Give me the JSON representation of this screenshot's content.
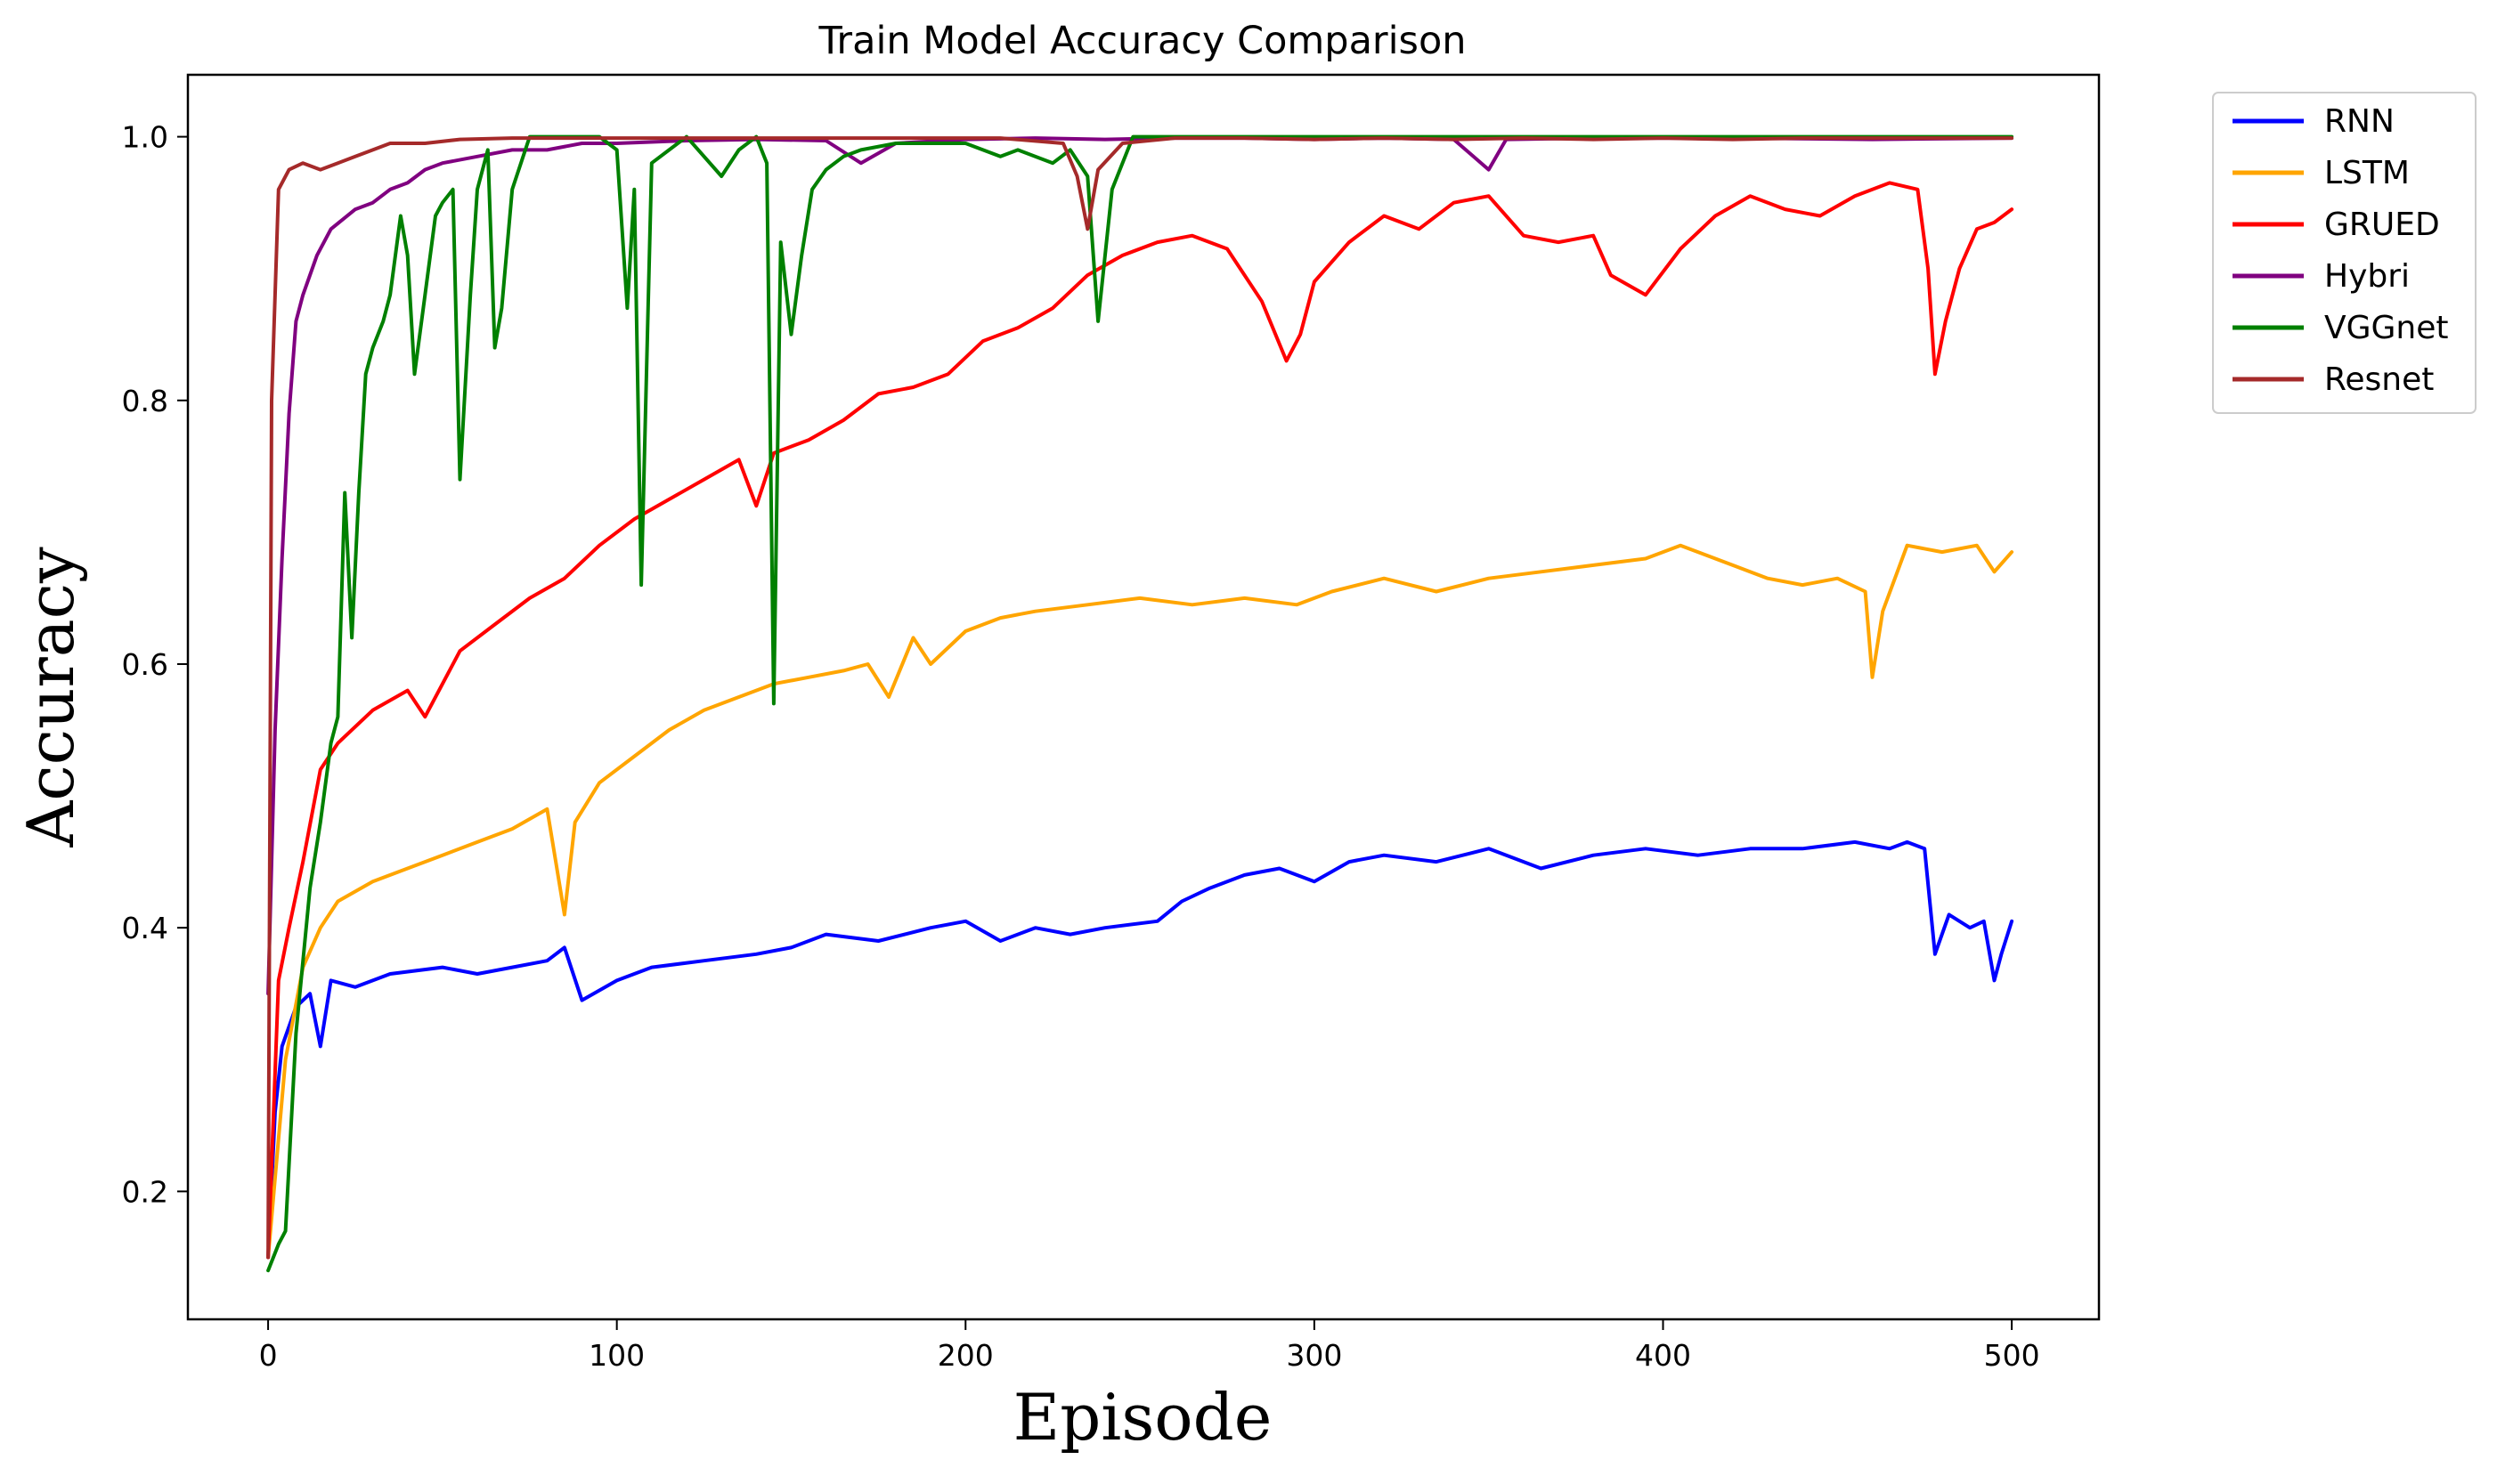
{
  "chart_data": {
    "type": "line",
    "title": "Train Model Accuracy Comparison",
    "xlabel": "Episode",
    "ylabel": "Accuracy",
    "xlim": [
      -23,
      525
    ],
    "ylim": [
      0.103,
      1.047
    ],
    "xticks": [
      0,
      100,
      200,
      300,
      400,
      500
    ],
    "yticks": [
      0.2,
      0.4,
      0.6,
      0.8,
      1.0
    ],
    "xtick_labels": [
      "0",
      "100",
      "200",
      "300",
      "400",
      "500"
    ],
    "ytick_labels": [
      "0.2",
      "0.4",
      "0.6",
      "0.8",
      "1.0"
    ],
    "grid": false,
    "legend_position": "outside-top-right",
    "series": [
      {
        "name": "RNN",
        "color": "#0000ff",
        "points": [
          [
            0,
            0.15
          ],
          [
            2,
            0.26
          ],
          [
            4,
            0.31
          ],
          [
            8,
            0.34
          ],
          [
            12,
            0.35
          ],
          [
            15,
            0.31
          ],
          [
            18,
            0.36
          ],
          [
            25,
            0.355
          ],
          [
            35,
            0.365
          ],
          [
            50,
            0.37
          ],
          [
            60,
            0.365
          ],
          [
            70,
            0.37
          ],
          [
            80,
            0.375
          ],
          [
            85,
            0.385
          ],
          [
            90,
            0.345
          ],
          [
            100,
            0.36
          ],
          [
            110,
            0.37
          ],
          [
            125,
            0.375
          ],
          [
            140,
            0.38
          ],
          [
            150,
            0.385
          ],
          [
            160,
            0.395
          ],
          [
            175,
            0.39
          ],
          [
            190,
            0.4
          ],
          [
            200,
            0.405
          ],
          [
            210,
            0.39
          ],
          [
            220,
            0.4
          ],
          [
            230,
            0.395
          ],
          [
            240,
            0.4
          ],
          [
            255,
            0.405
          ],
          [
            262,
            0.42
          ],
          [
            270,
            0.43
          ],
          [
            280,
            0.44
          ],
          [
            290,
            0.445
          ],
          [
            300,
            0.435
          ],
          [
            310,
            0.45
          ],
          [
            320,
            0.455
          ],
          [
            335,
            0.45
          ],
          [
            350,
            0.46
          ],
          [
            365,
            0.445
          ],
          [
            380,
            0.455
          ],
          [
            395,
            0.46
          ],
          [
            410,
            0.455
          ],
          [
            425,
            0.46
          ],
          [
            440,
            0.46
          ],
          [
            455,
            0.465
          ],
          [
            465,
            0.46
          ],
          [
            470,
            0.465
          ],
          [
            475,
            0.46
          ],
          [
            478,
            0.38
          ],
          [
            482,
            0.41
          ],
          [
            488,
            0.4
          ],
          [
            492,
            0.405
          ],
          [
            495,
            0.36
          ],
          [
            497,
            0.38
          ],
          [
            500,
            0.405
          ]
        ]
      },
      {
        "name": "LSTM",
        "color": "#ffa500",
        "points": [
          [
            0,
            0.15
          ],
          [
            5,
            0.3
          ],
          [
            10,
            0.37
          ],
          [
            15,
            0.4
          ],
          [
            20,
            0.42
          ],
          [
            30,
            0.435
          ],
          [
            40,
            0.445
          ],
          [
            50,
            0.455
          ],
          [
            60,
            0.465
          ],
          [
            70,
            0.475
          ],
          [
            80,
            0.49
          ],
          [
            85,
            0.41
          ],
          [
            88,
            0.48
          ],
          [
            95,
            0.51
          ],
          [
            105,
            0.53
          ],
          [
            115,
            0.55
          ],
          [
            125,
            0.565
          ],
          [
            135,
            0.575
          ],
          [
            145,
            0.585
          ],
          [
            155,
            0.59
          ],
          [
            165,
            0.595
          ],
          [
            172,
            0.6
          ],
          [
            178,
            0.575
          ],
          [
            185,
            0.62
          ],
          [
            190,
            0.6
          ],
          [
            200,
            0.625
          ],
          [
            210,
            0.635
          ],
          [
            220,
            0.64
          ],
          [
            235,
            0.645
          ],
          [
            250,
            0.65
          ],
          [
            265,
            0.645
          ],
          [
            280,
            0.65
          ],
          [
            295,
            0.645
          ],
          [
            305,
            0.655
          ],
          [
            320,
            0.665
          ],
          [
            335,
            0.655
          ],
          [
            350,
            0.665
          ],
          [
            365,
            0.67
          ],
          [
            380,
            0.675
          ],
          [
            395,
            0.68
          ],
          [
            405,
            0.69
          ],
          [
            410,
            0.685
          ],
          [
            420,
            0.675
          ],
          [
            430,
            0.665
          ],
          [
            440,
            0.66
          ],
          [
            450,
            0.665
          ],
          [
            458,
            0.655
          ],
          [
            460,
            0.59
          ],
          [
            463,
            0.64
          ],
          [
            470,
            0.69
          ],
          [
            480,
            0.685
          ],
          [
            490,
            0.69
          ],
          [
            495,
            0.67
          ],
          [
            500,
            0.685
          ]
        ]
      },
      {
        "name": "GRUED",
        "color": "#ff0000",
        "points": [
          [
            0,
            0.15
          ],
          [
            3,
            0.36
          ],
          [
            6,
            0.4
          ],
          [
            10,
            0.45
          ],
          [
            15,
            0.52
          ],
          [
            20,
            0.54
          ],
          [
            30,
            0.565
          ],
          [
            40,
            0.58
          ],
          [
            45,
            0.56
          ],
          [
            55,
            0.61
          ],
          [
            65,
            0.63
          ],
          [
            75,
            0.65
          ],
          [
            85,
            0.665
          ],
          [
            95,
            0.69
          ],
          [
            105,
            0.71
          ],
          [
            115,
            0.725
          ],
          [
            125,
            0.74
          ],
          [
            135,
            0.755
          ],
          [
            140,
            0.72
          ],
          [
            145,
            0.76
          ],
          [
            155,
            0.77
          ],
          [
            165,
            0.785
          ],
          [
            175,
            0.805
          ],
          [
            185,
            0.81
          ],
          [
            195,
            0.82
          ],
          [
            205,
            0.845
          ],
          [
            215,
            0.855
          ],
          [
            225,
            0.87
          ],
          [
            235,
            0.895
          ],
          [
            245,
            0.91
          ],
          [
            255,
            0.92
          ],
          [
            265,
            0.925
          ],
          [
            275,
            0.915
          ],
          [
            285,
            0.875
          ],
          [
            292,
            0.83
          ],
          [
            296,
            0.85
          ],
          [
            300,
            0.89
          ],
          [
            310,
            0.92
          ],
          [
            320,
            0.94
          ],
          [
            330,
            0.93
          ],
          [
            340,
            0.95
          ],
          [
            350,
            0.955
          ],
          [
            360,
            0.925
          ],
          [
            370,
            0.92
          ],
          [
            380,
            0.925
          ],
          [
            385,
            0.895
          ],
          [
            395,
            0.88
          ],
          [
            405,
            0.915
          ],
          [
            415,
            0.94
          ],
          [
            425,
            0.955
          ],
          [
            435,
            0.945
          ],
          [
            445,
            0.94
          ],
          [
            455,
            0.955
          ],
          [
            465,
            0.965
          ],
          [
            473,
            0.96
          ],
          [
            476,
            0.9
          ],
          [
            478,
            0.82
          ],
          [
            481,
            0.86
          ],
          [
            485,
            0.9
          ],
          [
            490,
            0.93
          ],
          [
            495,
            0.935
          ],
          [
            500,
            0.945
          ]
        ]
      },
      {
        "name": "Hybri",
        "color": "#800080",
        "points": [
          [
            0,
            0.35
          ],
          [
            2,
            0.55
          ],
          [
            4,
            0.68
          ],
          [
            6,
            0.79
          ],
          [
            8,
            0.86
          ],
          [
            10,
            0.88
          ],
          [
            14,
            0.91
          ],
          [
            18,
            0.93
          ],
          [
            25,
            0.945
          ],
          [
            30,
            0.95
          ],
          [
            35,
            0.96
          ],
          [
            40,
            0.965
          ],
          [
            45,
            0.975
          ],
          [
            50,
            0.98
          ],
          [
            60,
            0.985
          ],
          [
            70,
            0.99
          ],
          [
            80,
            0.99
          ],
          [
            90,
            0.995
          ],
          [
            100,
            0.995
          ],
          [
            120,
            0.997
          ],
          [
            140,
            0.998
          ],
          [
            160,
            0.997
          ],
          [
            170,
            0.98
          ],
          [
            180,
            0.995
          ],
          [
            200,
            0.998
          ],
          [
            220,
            0.999
          ],
          [
            240,
            0.998
          ],
          [
            260,
            0.999
          ],
          [
            280,
            0.999
          ],
          [
            300,
            0.998
          ],
          [
            320,
            0.999
          ],
          [
            340,
            0.998
          ],
          [
            350,
            0.975
          ],
          [
            355,
            0.998
          ],
          [
            380,
            0.999
          ],
          [
            420,
            0.999
          ],
          [
            460,
            0.998
          ],
          [
            500,
            0.999
          ]
        ]
      },
      {
        "name": "VGGnet",
        "color": "#008000",
        "points": [
          [
            0,
            0.14
          ],
          [
            3,
            0.16
          ],
          [
            5,
            0.17
          ],
          [
            8,
            0.32
          ],
          [
            12,
            0.43
          ],
          [
            15,
            0.48
          ],
          [
            18,
            0.54
          ],
          [
            20,
            0.56
          ],
          [
            22,
            0.73
          ],
          [
            24,
            0.62
          ],
          [
            26,
            0.73
          ],
          [
            28,
            0.82
          ],
          [
            30,
            0.84
          ],
          [
            33,
            0.86
          ],
          [
            35,
            0.88
          ],
          [
            38,
            0.94
          ],
          [
            40,
            0.91
          ],
          [
            42,
            0.82
          ],
          [
            45,
            0.88
          ],
          [
            48,
            0.94
          ],
          [
            50,
            0.95
          ],
          [
            53,
            0.96
          ],
          [
            55,
            0.74
          ],
          [
            58,
            0.88
          ],
          [
            60,
            0.96
          ],
          [
            63,
            0.99
          ],
          [
            65,
            0.84
          ],
          [
            67,
            0.87
          ],
          [
            70,
            0.96
          ],
          [
            75,
            1.0
          ],
          [
            85,
            1.0
          ],
          [
            95,
            1.0
          ],
          [
            100,
            0.99
          ],
          [
            103,
            0.87
          ],
          [
            105,
            0.96
          ],
          [
            107,
            0.66
          ],
          [
            110,
            0.98
          ],
          [
            115,
            0.99
          ],
          [
            120,
            1.0
          ],
          [
            130,
            0.97
          ],
          [
            135,
            0.99
          ],
          [
            140,
            1.0
          ],
          [
            143,
            0.98
          ],
          [
            145,
            0.57
          ],
          [
            147,
            0.92
          ],
          [
            150,
            0.85
          ],
          [
            153,
            0.91
          ],
          [
            156,
            0.96
          ],
          [
            160,
            0.975
          ],
          [
            165,
            0.985
          ],
          [
            170,
            0.99
          ],
          [
            180,
            0.995
          ],
          [
            190,
            0.995
          ],
          [
            200,
            0.995
          ],
          [
            210,
            0.985
          ],
          [
            215,
            0.99
          ],
          [
            225,
            0.98
          ],
          [
            230,
            0.99
          ],
          [
            235,
            0.97
          ],
          [
            238,
            0.86
          ],
          [
            242,
            0.96
          ],
          [
            248,
            1.0
          ],
          [
            260,
            1.0
          ],
          [
            300,
            1.0
          ],
          [
            400,
            1.0
          ],
          [
            500,
            1.0
          ]
        ]
      },
      {
        "name": "Resnet",
        "color": "#a52a2a",
        "points": [
          [
            0,
            0.15
          ],
          [
            1,
            0.8
          ],
          [
            3,
            0.96
          ],
          [
            6,
            0.975
          ],
          [
            10,
            0.98
          ],
          [
            15,
            0.975
          ],
          [
            20,
            0.98
          ],
          [
            25,
            0.985
          ],
          [
            30,
            0.99
          ],
          [
            35,
            0.995
          ],
          [
            45,
            0.995
          ],
          [
            55,
            0.998
          ],
          [
            70,
            0.999
          ],
          [
            90,
            0.999
          ],
          [
            110,
            0.999
          ],
          [
            130,
            0.999
          ],
          [
            150,
            0.999
          ],
          [
            170,
            0.999
          ],
          [
            190,
            0.999
          ],
          [
            210,
            0.999
          ],
          [
            228,
            0.995
          ],
          [
            232,
            0.97
          ],
          [
            235,
            0.93
          ],
          [
            238,
            0.975
          ],
          [
            245,
            0.995
          ],
          [
            260,
            0.999
          ],
          [
            280,
            0.999
          ],
          [
            300,
            0.998
          ],
          [
            320,
            0.999
          ],
          [
            340,
            0.998
          ],
          [
            360,
            0.999
          ],
          [
            380,
            0.998
          ],
          [
            400,
            0.999
          ],
          [
            420,
            0.998
          ],
          [
            440,
            0.999
          ],
          [
            460,
            0.999
          ],
          [
            480,
            0.999
          ],
          [
            500,
            0.999
          ]
        ]
      }
    ]
  }
}
